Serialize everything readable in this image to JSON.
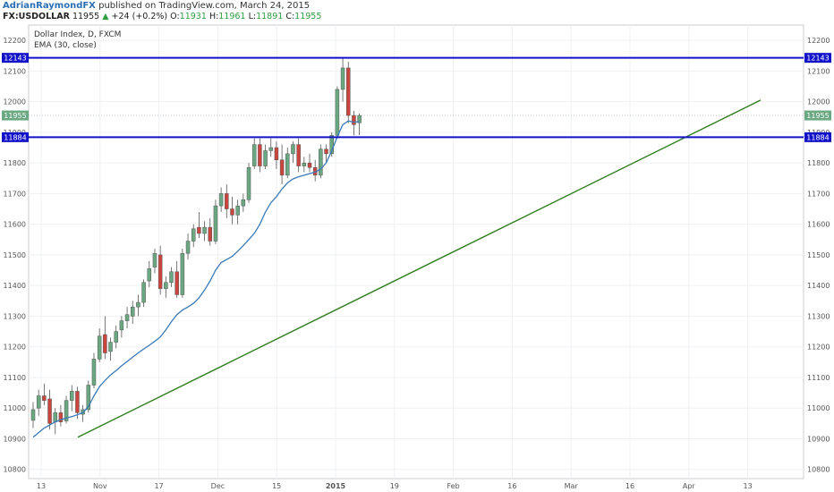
{
  "header": {
    "author": "AdrianRaymondFX",
    "published": "published on TradingView.com, March 24, 2015",
    "symbol": "FX:USDOLLAR",
    "last": "11955",
    "change": "+24 (+0.2%)",
    "o_label": "O:",
    "o_value": "11931",
    "h_label": "H:",
    "h_value": "11961",
    "l_label": "L:",
    "l_value": "11891",
    "c_label": "C:",
    "c_value": "11955"
  },
  "legend": {
    "line1": "Dollar Index, D, FXCM",
    "line2": "EMA (30, close)"
  },
  "colors": {
    "up": "#6aa882",
    "down": "#c9453d",
    "ema": "#3a7ab8",
    "trendline": "#2f7d1e",
    "level": "#1212c8",
    "price_tag": "#6aa882",
    "grid": "#eef0f3",
    "axis_text": "#555555"
  },
  "chart_data": {
    "type": "candlestick",
    "y_range": [
      10770,
      12250
    ],
    "y_ticks": [
      10800,
      10900,
      11000,
      11100,
      11200,
      11300,
      11400,
      11500,
      11600,
      11700,
      11800,
      11900,
      12000,
      12100,
      12200
    ],
    "x_tick_labels": [
      "13",
      "Nov",
      "17",
      "Dec",
      "15",
      "2015",
      "19",
      "Feb",
      "16",
      "Mar",
      "16",
      "Apr",
      "13"
    ],
    "bold_tick_labels": [
      "2015"
    ],
    "horizontal_levels": [
      {
        "value": 12143,
        "label": "12143"
      },
      {
        "value": 11884,
        "label": "11884"
      }
    ],
    "last_price": {
      "value": 11955,
      "label": "11955"
    },
    "trendline": {
      "start": 10905,
      "end": 12005
    },
    "ema_30": [
      10905,
      10920,
      10935,
      10945,
      10955,
      10962,
      10968,
      10972,
      10978,
      10985,
      11005,
      11040,
      11070,
      11090,
      11108,
      11122,
      11138,
      11152,
      11166,
      11180,
      11193,
      11205,
      11218,
      11232,
      11255,
      11282,
      11305,
      11320,
      11330,
      11342,
      11360,
      11385,
      11415,
      11450,
      11475,
      11485,
      11495,
      11512,
      11530,
      11550,
      11570,
      11600,
      11640,
      11670,
      11690,
      11715,
      11735,
      11748,
      11755,
      11760,
      11765,
      11770,
      11780,
      11800,
      11840,
      11885,
      11925,
      11937,
      11933,
      11935
    ],
    "candles": [
      {
        "o": 10960,
        "h": 11020,
        "l": 10935,
        "c": 10995
      },
      {
        "o": 11000,
        "h": 11060,
        "l": 10975,
        "c": 11040
      },
      {
        "o": 11040,
        "h": 11080,
        "l": 11010,
        "c": 11025
      },
      {
        "o": 11030,
        "h": 11060,
        "l": 10930,
        "c": 10950
      },
      {
        "o": 10955,
        "h": 11000,
        "l": 10915,
        "c": 10985
      },
      {
        "o": 10985,
        "h": 11010,
        "l": 10940,
        "c": 10955
      },
      {
        "o": 10958,
        "h": 11040,
        "l": 10950,
        "c": 11025
      },
      {
        "o": 11025,
        "h": 11075,
        "l": 10990,
        "c": 11055
      },
      {
        "o": 11055,
        "h": 11070,
        "l": 10965,
        "c": 10985
      },
      {
        "o": 10980,
        "h": 11010,
        "l": 10955,
        "c": 10995
      },
      {
        "o": 10995,
        "h": 11090,
        "l": 10985,
        "c": 11075
      },
      {
        "o": 11075,
        "h": 11180,
        "l": 11065,
        "c": 11160
      },
      {
        "o": 11160,
        "h": 11260,
        "l": 11150,
        "c": 11235
      },
      {
        "o": 11240,
        "h": 11300,
        "l": 11160,
        "c": 11180
      },
      {
        "o": 11185,
        "h": 11230,
        "l": 11155,
        "c": 11215
      },
      {
        "o": 11215,
        "h": 11270,
        "l": 11195,
        "c": 11250
      },
      {
        "o": 11255,
        "h": 11300,
        "l": 11230,
        "c": 11285
      },
      {
        "o": 11285,
        "h": 11330,
        "l": 11260,
        "c": 11305
      },
      {
        "o": 11300,
        "h": 11350,
        "l": 11275,
        "c": 11330
      },
      {
        "o": 11330,
        "h": 11370,
        "l": 11300,
        "c": 11345
      },
      {
        "o": 11345,
        "h": 11420,
        "l": 11330,
        "c": 11410
      },
      {
        "o": 11415,
        "h": 11480,
        "l": 11395,
        "c": 11455
      },
      {
        "o": 11460,
        "h": 11520,
        "l": 11440,
        "c": 11505
      },
      {
        "o": 11500,
        "h": 11530,
        "l": 11370,
        "c": 11390
      },
      {
        "o": 11390,
        "h": 11430,
        "l": 11360,
        "c": 11410
      },
      {
        "o": 11410,
        "h": 11460,
        "l": 11395,
        "c": 11445
      },
      {
        "o": 11445,
        "h": 11480,
        "l": 11360,
        "c": 11370
      },
      {
        "o": 11370,
        "h": 11520,
        "l": 11360,
        "c": 11505
      },
      {
        "o": 11505,
        "h": 11570,
        "l": 11485,
        "c": 11545
      },
      {
        "o": 11545,
        "h": 11600,
        "l": 11525,
        "c": 11585
      },
      {
        "o": 11590,
        "h": 11640,
        "l": 11555,
        "c": 11570
      },
      {
        "o": 11570,
        "h": 11610,
        "l": 11545,
        "c": 11590
      },
      {
        "o": 11590,
        "h": 11620,
        "l": 11530,
        "c": 11545
      },
      {
        "o": 11545,
        "h": 11680,
        "l": 11535,
        "c": 11660
      },
      {
        "o": 11660,
        "h": 11720,
        "l": 11640,
        "c": 11700
      },
      {
        "o": 11700,
        "h": 11730,
        "l": 11620,
        "c": 11650
      },
      {
        "o": 11650,
        "h": 11690,
        "l": 11600,
        "c": 11630
      },
      {
        "o": 11630,
        "h": 11680,
        "l": 11600,
        "c": 11660
      },
      {
        "o": 11660,
        "h": 11700,
        "l": 11640,
        "c": 11680
      },
      {
        "o": 11680,
        "h": 11800,
        "l": 11670,
        "c": 11785
      },
      {
        "o": 11790,
        "h": 11880,
        "l": 11780,
        "c": 11860
      },
      {
        "o": 11860,
        "h": 11880,
        "l": 11770,
        "c": 11790
      },
      {
        "o": 11790,
        "h": 11860,
        "l": 11780,
        "c": 11840
      },
      {
        "o": 11840,
        "h": 11880,
        "l": 11820,
        "c": 11850
      },
      {
        "o": 11850,
        "h": 11870,
        "l": 11780,
        "c": 11810
      },
      {
        "o": 11810,
        "h": 11860,
        "l": 11730,
        "c": 11760
      },
      {
        "o": 11760,
        "h": 11850,
        "l": 11750,
        "c": 11830
      },
      {
        "o": 11830,
        "h": 11870,
        "l": 11800,
        "c": 11860
      },
      {
        "o": 11860,
        "h": 11880,
        "l": 11770,
        "c": 11790
      },
      {
        "o": 11790,
        "h": 11820,
        "l": 11770,
        "c": 11800
      },
      {
        "o": 11800,
        "h": 11830,
        "l": 11770,
        "c": 11785
      },
      {
        "o": 11785,
        "h": 11810,
        "l": 11740,
        "c": 11760
      },
      {
        "o": 11760,
        "h": 11860,
        "l": 11750,
        "c": 11845
      },
      {
        "o": 11845,
        "h": 11860,
        "l": 11800,
        "c": 11830
      },
      {
        "o": 11830,
        "h": 11900,
        "l": 11820,
        "c": 11890
      },
      {
        "o": 11890,
        "h": 12050,
        "l": 11880,
        "c": 12040
      },
      {
        "o": 12040,
        "h": 12145,
        "l": 12000,
        "c": 12110
      },
      {
        "o": 12110,
        "h": 12130,
        "l": 11930,
        "c": 11955
      },
      {
        "o": 11955,
        "h": 11970,
        "l": 11890,
        "c": 11925
      },
      {
        "o": 11931,
        "h": 11961,
        "l": 11891,
        "c": 11955
      }
    ]
  }
}
